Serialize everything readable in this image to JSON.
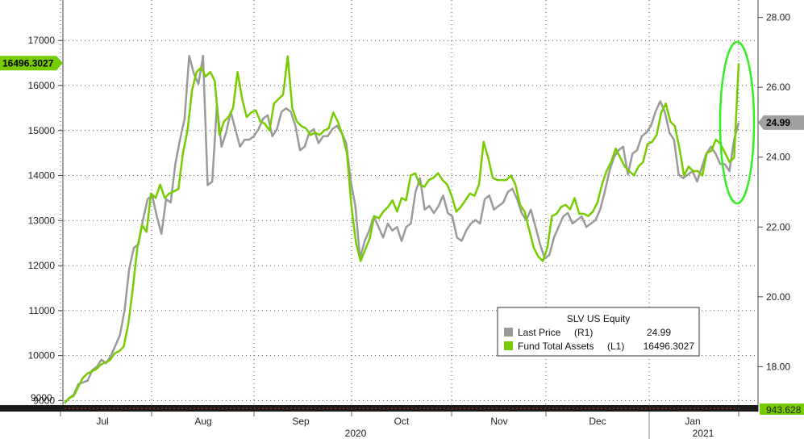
{
  "chart_data": {
    "type": "line",
    "legend": {
      "title": "SLV US Equity",
      "placement": "bottom-right",
      "entries": [
        {
          "label": "Last Price",
          "axis": "(R1)",
          "value": "24.99",
          "color": "#9a9a9a"
        },
        {
          "label": "Fund Total Assets",
          "axis": "(L1)",
          "value": "16496.3027",
          "color": "#77cc00"
        }
      ]
    },
    "left_axis": {
      "ylim": [
        8900,
        17900
      ],
      "ticks": [
        "9000",
        "10000",
        "11000",
        "12000",
        "13000",
        "14000",
        "15000",
        "16000",
        "17000"
      ],
      "current_label": "16496.3027",
      "current_value": 16496.3,
      "bottom_label": "9000"
    },
    "right_axis": {
      "ylim": [
        16.9,
        28.5
      ],
      "ticks": [
        "18.00",
        "20.00",
        "22.00",
        "24.00",
        "26.00",
        "28.00"
      ],
      "current_label": "24.99",
      "current_value": 24.99,
      "bottom_label": "943.628"
    },
    "x_axis": {
      "months": [
        "Jul",
        "Aug",
        "Sep",
        "Oct",
        "Nov",
        "Dec",
        "Jan"
      ],
      "years": [
        "2020",
        "2021"
      ]
    },
    "grid": true,
    "series": [
      {
        "name": "Fund Total Assets",
        "axis": "left",
        "color": "#77cc00",
        "values": [
          8950,
          9050,
          9100,
          9300,
          9500,
          9600,
          9650,
          9700,
          9800,
          9850,
          9900,
          10050,
          10100,
          10200,
          10700,
          11500,
          12400,
          12900,
          12750,
          13600,
          13500,
          13800,
          13500,
          13600,
          13650,
          13700,
          14500,
          15000,
          15900,
          16300,
          16400,
          16200,
          16300,
          16100,
          14900,
          15200,
          15300,
          15500,
          16300,
          15700,
          15300,
          15400,
          15450,
          15200,
          15150,
          15000,
          15600,
          15700,
          15800,
          16650,
          15500,
          15200,
          15100,
          15050,
          14900,
          14950,
          14900,
          15000,
          15050,
          15400,
          15200,
          14900,
          14500,
          13300,
          12500,
          12100,
          12350,
          12600,
          13100,
          13050,
          13200,
          13300,
          13450,
          13200,
          13500,
          13450,
          14000,
          14050,
          13800,
          13750,
          13900,
          13950,
          14050,
          13900,
          13800,
          13550,
          13200,
          13300,
          13450,
          13600,
          13550,
          13800,
          14750,
          14400,
          13950,
          13900,
          13900,
          13900,
          14000,
          13800,
          13350,
          13200,
          12800,
          12400,
          12200,
          12100,
          12400,
          13100,
          13150,
          13300,
          13350,
          13250,
          13500,
          13150,
          13150,
          13100,
          13200,
          13400,
          13800,
          14100,
          14300,
          14600,
          14400,
          14200,
          14100,
          14000,
          14200,
          14300,
          14700,
          14750,
          14900,
          15400,
          15600,
          15200,
          15100,
          14600,
          14000,
          14200,
          14100,
          14100,
          14000,
          14500,
          14550,
          14800,
          14700,
          14500,
          14300,
          14400,
          16496
        ]
      },
      {
        "name": "Last Price",
        "axis": "right",
        "color": "#9a9a9a",
        "values": [
          16.95,
          17.1,
          17.2,
          17.5,
          17.55,
          17.6,
          17.9,
          18.0,
          18.2,
          18.1,
          18.3,
          18.6,
          18.9,
          19.6,
          20.8,
          21.4,
          21.5,
          22.2,
          22.8,
          22.9,
          22.3,
          21.8,
          22.8,
          22.7,
          23.8,
          24.5,
          25.1,
          26.9,
          26.4,
          26.1,
          26.9,
          23.2,
          23.3,
          25.5,
          24.3,
          24.7,
          25.3,
          24.8,
          24.3,
          24.5,
          24.5,
          24.6,
          24.8,
          25.1,
          25.2,
          24.6,
          24.8,
          25.3,
          25.4,
          25.3,
          24.9,
          24.2,
          24.3,
          24.7,
          24.8,
          24.4,
          24.6,
          24.6,
          24.8,
          24.9,
          24.7,
          24.4,
          23.3,
          22.6,
          21.1,
          21.6,
          21.9,
          22.3,
          22.0,
          21.7,
          22.1,
          21.9,
          22.0,
          21.6,
          22.0,
          22.1,
          23.0,
          23.4,
          22.5,
          22.6,
          22.4,
          22.6,
          22.9,
          22.4,
          22.3,
          21.7,
          21.6,
          21.9,
          22.1,
          22.2,
          22.1,
          22.8,
          22.9,
          22.5,
          22.6,
          22.7,
          23.0,
          23.1,
          22.8,
          22.4,
          22.2,
          22.5,
          22.0,
          21.5,
          21.1,
          21.2,
          21.7,
          22.0,
          22.3,
          22.4,
          22.1,
          22.2,
          22.3,
          22.0,
          22.1,
          22.2,
          22.5,
          23.0,
          23.6,
          24.0,
          24.2,
          24.3,
          23.5,
          24.1,
          24.2,
          24.6,
          24.7,
          24.9,
          25.3,
          25.6,
          25.3,
          24.7,
          24.5,
          23.5,
          23.4,
          23.5,
          23.6,
          23.3,
          23.7,
          24.1,
          24.3,
          24.1,
          23.8,
          23.8,
          23.6,
          24.5,
          24.99
        ]
      }
    ]
  }
}
